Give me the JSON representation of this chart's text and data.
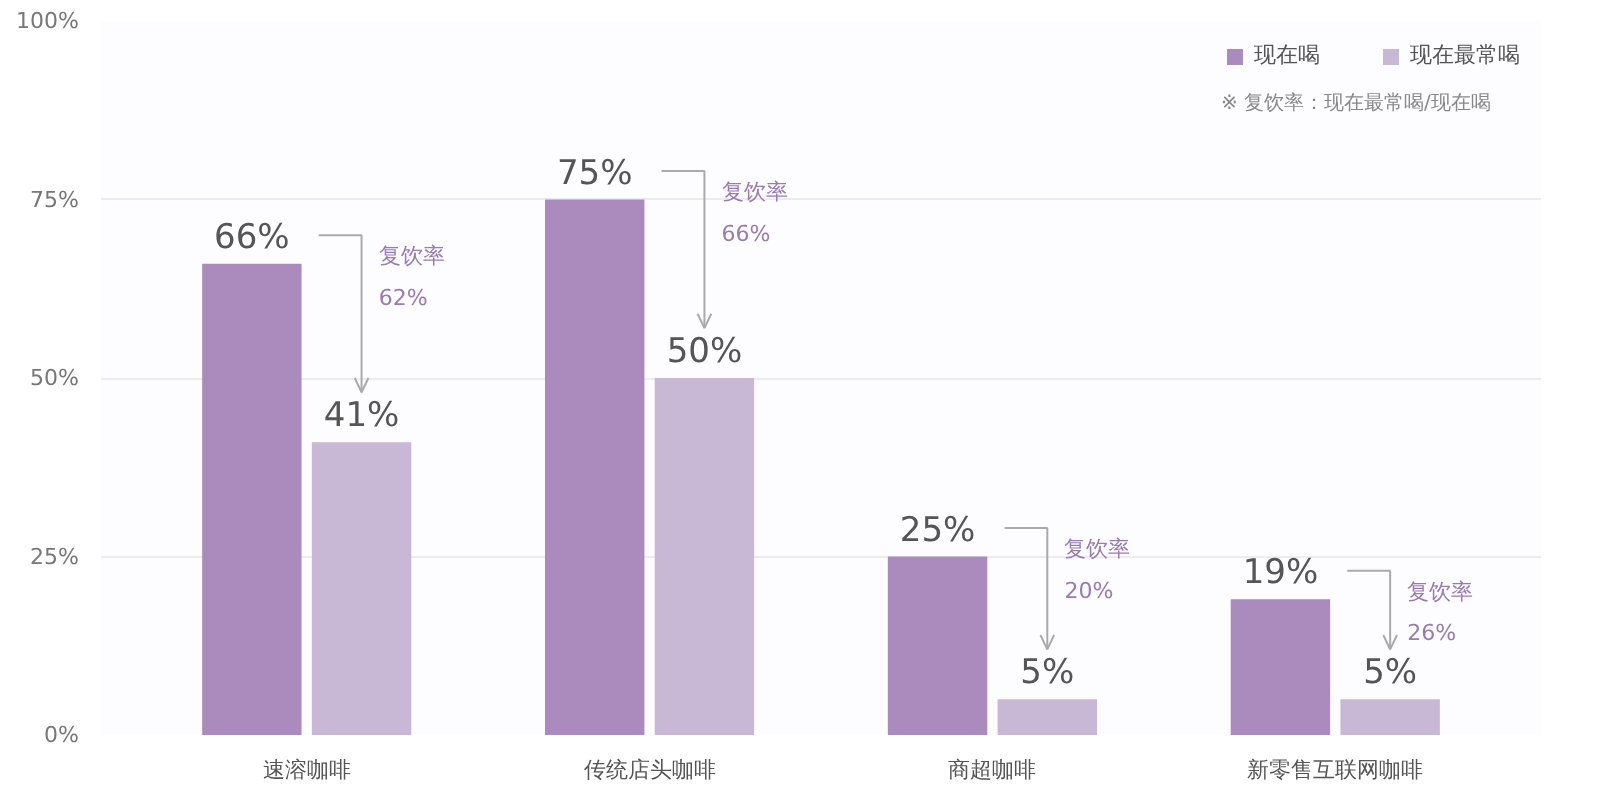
{
  "chart_data": {
    "type": "bar",
    "categories": [
      "速溶咖啡",
      "传统店头咖啡",
      "商超咖啡",
      "新零售互联网咖啡"
    ],
    "series": [
      {
        "name": "现在喝",
        "color": "#ab8bbd",
        "values": [
          66,
          75,
          25,
          19
        ],
        "value_labels": [
          "66%",
          "75%",
          "25%",
          "19%"
        ]
      },
      {
        "name": "现在最常喝",
        "color": "#c9b7d6",
        "values": [
          41,
          50,
          5,
          5
        ],
        "value_labels": [
          "41%",
          "50%",
          "5%",
          "5%"
        ]
      }
    ],
    "ylim": [
      0,
      100
    ],
    "yticks": [
      {
        "value": 0,
        "label": "0%"
      },
      {
        "value": 25,
        "label": "25%"
      },
      {
        "value": 50,
        "label": "50%"
      },
      {
        "value": 75,
        "label": "75%"
      },
      {
        "value": 100,
        "label": "100%"
      }
    ],
    "grid": "y",
    "legend": "top right",
    "annotations": [
      "复饮率\n62%",
      "复饮率\n66%",
      "复饮率\n20%",
      "复饮率\n26%",
      "※ 复饮率：现在最常喝/现在喝"
    ]
  }
}
